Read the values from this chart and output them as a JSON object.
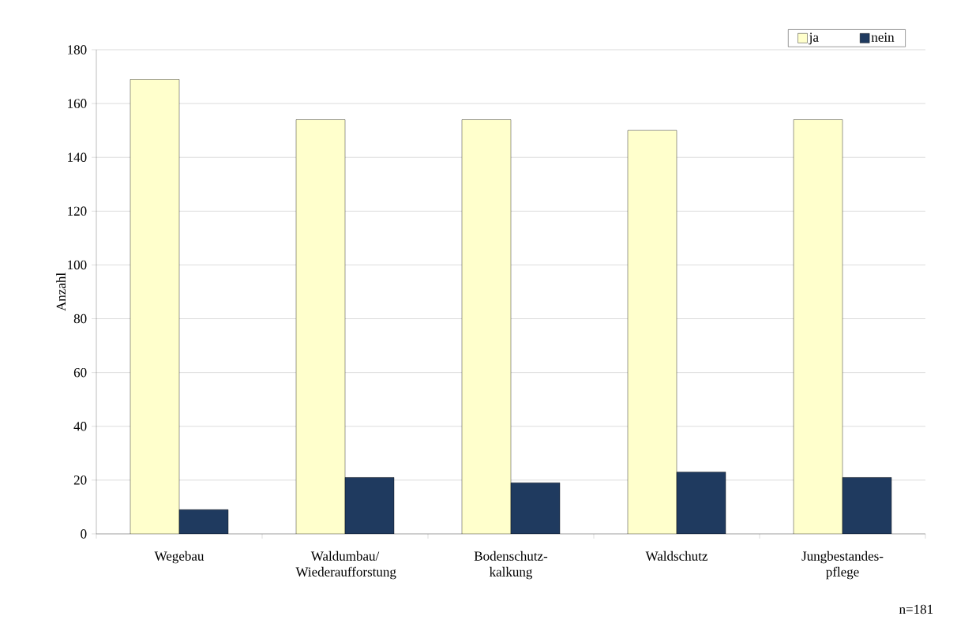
{
  "chart_data": {
    "type": "bar",
    "categories": [
      "Wegebau",
      "Waldumbau/ Wiederaufforstung",
      "Bodenschutz-kalkung",
      "Waldschutz",
      "Jungbestandes-pflege"
    ],
    "series": [
      {
        "name": "ja",
        "color": "#ffffcc",
        "values": [
          169,
          154,
          154,
          150,
          154
        ]
      },
      {
        "name": "nein",
        "color": "#1f3a5f",
        "values": [
          9,
          21,
          19,
          23,
          21
        ]
      }
    ],
    "ylabel": "Anzahl",
    "ylim": [
      0,
      180
    ],
    "yticks": [
      0,
      20,
      40,
      60,
      80,
      100,
      120,
      140,
      160,
      180
    ],
    "grid": "y",
    "legend": "top right",
    "annotations": [
      "n=181"
    ]
  }
}
